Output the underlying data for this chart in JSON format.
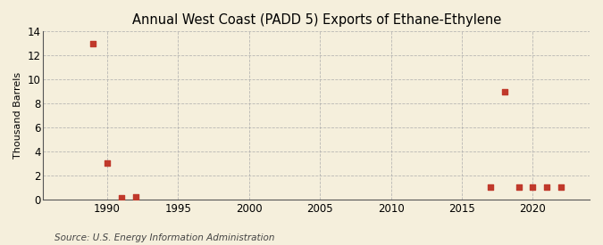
{
  "title": "Annual West Coast (PADD 5) Exports of Ethane-Ethylene",
  "ylabel": "Thousand Barrels",
  "source": "Source: U.S. Energy Information Administration",
  "data_points": [
    [
      1989,
      13
    ],
    [
      1990,
      3
    ],
    [
      1991,
      0.1
    ],
    [
      1992,
      0.2
    ],
    [
      2017,
      1
    ],
    [
      2018,
      9
    ],
    [
      2019,
      1
    ],
    [
      2020,
      1
    ],
    [
      2021,
      1
    ],
    [
      2022,
      1
    ]
  ],
  "marker_color": "#c0392b",
  "marker_size": 4,
  "background_color": "#f5efdc",
  "grid_color": "#aaaaaa",
  "xlim": [
    1985.5,
    2024
  ],
  "ylim": [
    0,
    14
  ],
  "yticks": [
    0,
    2,
    4,
    6,
    8,
    10,
    12,
    14
  ],
  "xticks": [
    1990,
    1995,
    2000,
    2005,
    2010,
    2015,
    2020
  ],
  "title_fontsize": 10.5,
  "label_fontsize": 8,
  "tick_fontsize": 8.5,
  "source_fontsize": 7.5
}
